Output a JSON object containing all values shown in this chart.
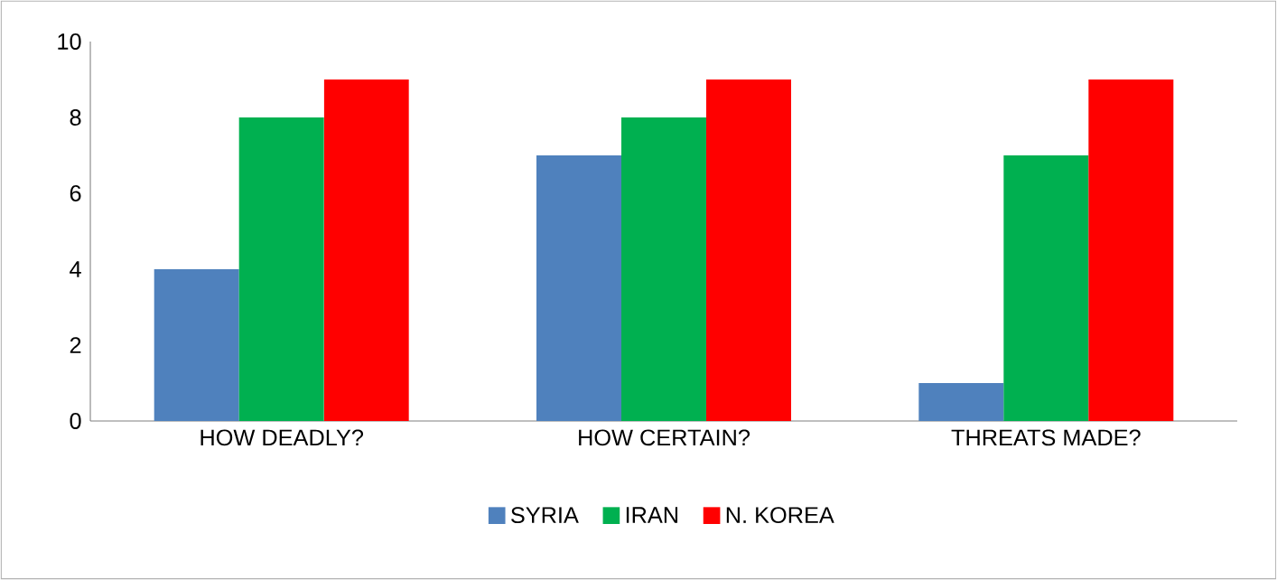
{
  "chart_data": {
    "type": "bar",
    "categories": [
      "HOW DEADLY?",
      "HOW CERTAIN?",
      "THREATS MADE?"
    ],
    "series": [
      {
        "name": "SYRIA",
        "color": "#4f81bd",
        "values": [
          4,
          7,
          1
        ]
      },
      {
        "name": "IRAN",
        "color": "#00b050",
        "values": [
          8,
          8,
          7
        ]
      },
      {
        "name": "N. KOREA",
        "color": "#ff0000",
        "values": [
          9,
          9,
          9
        ]
      }
    ],
    "ylim": [
      0,
      10
    ],
    "yticks": [
      0,
      2,
      4,
      6,
      8,
      10
    ],
    "legend": "bottom"
  }
}
